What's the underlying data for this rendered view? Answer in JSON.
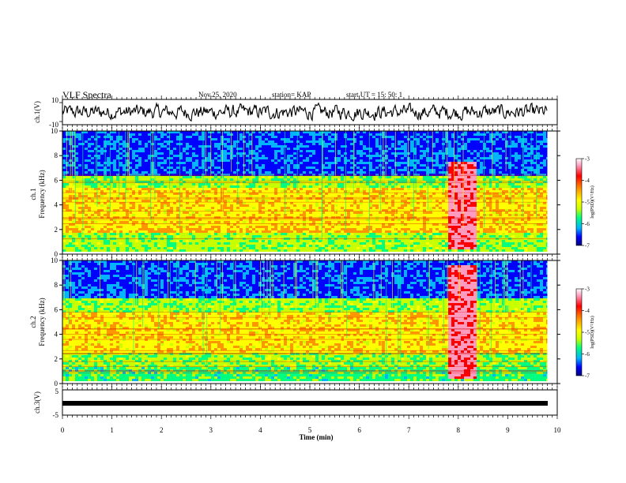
{
  "header": {
    "title": "VLF Spectra",
    "date": "Nov.25, 2020",
    "station": "station= KAP",
    "start": "start UT = 15: 50: 1"
  },
  "colorbar": {
    "label": "log(PSD)(V²/Hz)",
    "ticks": [
      "-3",
      "-4",
      "-5",
      "-6",
      "-7"
    ]
  },
  "chart_data": [
    {
      "type": "line",
      "name": "ch1-waveform",
      "ylabel": "ch.1(V)",
      "ylim": [
        -10,
        10
      ],
      "yticks": [
        "10",
        "-10"
      ],
      "x_range_min": [
        0,
        9.8
      ],
      "y_approx": "noisy signal fluctuating roughly between -6 and +6 V"
    },
    {
      "type": "heatmap",
      "name": "ch1-spectrogram",
      "ylabel": "ch.1",
      "ylabel2": "Frequency (kHz)",
      "ylim": [
        0,
        10
      ],
      "yticks": [
        "10",
        "8",
        "6",
        "4",
        "2",
        "0"
      ],
      "x_range_min": [
        0,
        9.8
      ],
      "bands": [
        {
          "f_range_khz": [
            6.5,
            10
          ],
          "level": "low (blue)"
        },
        {
          "f_range_khz": [
            5.5,
            6.5
          ],
          "level": "medium (green)"
        },
        {
          "f_range_khz": [
            2.2,
            5.5
          ],
          "level": "medium-high (yellow)"
        },
        {
          "f_range_khz": [
            1.8,
            2.2
          ],
          "level": "high (yellow/orange)"
        },
        {
          "f_range_khz": [
            0.2,
            1.8
          ],
          "level": "medium (green)"
        }
      ],
      "burst": {
        "t_range_min": [
          7.75,
          8.35
        ],
        "f_range_khz": [
          0.4,
          7.5
        ],
        "level": "very high (red)"
      }
    },
    {
      "type": "heatmap",
      "name": "ch2-spectrogram",
      "ylabel": "ch.2",
      "ylabel2": "Frequency (kHz)",
      "ylim": [
        0,
        10
      ],
      "yticks": [
        "10",
        "8",
        "6",
        "4",
        "2",
        "0"
      ],
      "x_range_min": [
        0,
        9.8
      ],
      "bands": [
        {
          "f_range_khz": [
            7,
            10
          ],
          "level": "low (blue)"
        },
        {
          "f_range_khz": [
            5.8,
            7
          ],
          "level": "medium (green)"
        },
        {
          "f_range_khz": [
            2.6,
            5.8
          ],
          "level": "medium-high (yellow/orange)"
        },
        {
          "f_range_khz": [
            1.4,
            2.6
          ],
          "level": "medium (yellow/green)"
        },
        {
          "f_range_khz": [
            0.2,
            1.4
          ],
          "level": "medium-low (green/cyan)"
        }
      ],
      "burst": {
        "t_range_min": [
          7.75,
          8.35
        ],
        "f_range_khz": [
          0.4,
          9.8
        ],
        "level": "very high (red)"
      }
    },
    {
      "type": "line",
      "name": "ch3-waveform",
      "ylabel": "ch.3(V)",
      "ylim": [
        -5,
        5
      ],
      "yticks": [
        "5",
        "-5"
      ],
      "x_range_min": [
        0,
        9.8
      ],
      "y_approx": "dense signal near -2 V"
    }
  ],
  "xaxis": {
    "label": "Time (min)",
    "ticks": [
      "0",
      "1",
      "2",
      "3",
      "4",
      "5",
      "6",
      "7",
      "8",
      "9",
      "10"
    ],
    "xlim": [
      0,
      10
    ]
  },
  "colors": {
    "waveform": "#000000",
    "scale": [
      "#00007a",
      "#0000ff",
      "#00b4ff",
      "#00ff80",
      "#c8ff00",
      "#ffff00",
      "#ff9600",
      "#ff0000",
      "#ff9bbe",
      "#ffffff"
    ]
  }
}
